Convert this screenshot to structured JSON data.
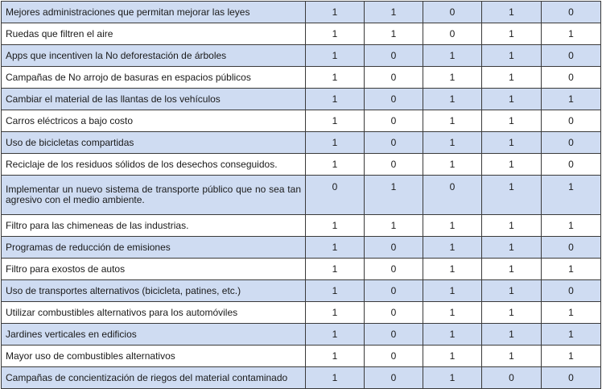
{
  "table": {
    "rows": [
      {
        "label": "Mejores administraciones que permitan mejorar las leyes",
        "values": [
          "1",
          "1",
          "0",
          "1",
          "0"
        ]
      },
      {
        "label": "Ruedas que filtren el aire",
        "values": [
          "1",
          "1",
          "0",
          "1",
          "1"
        ]
      },
      {
        "label": "Apps que incentiven la No deforestación de árboles",
        "values": [
          "1",
          "0",
          "1",
          "1",
          "0"
        ]
      },
      {
        "label": "Campañas de No arrojo de basuras en espacios públicos",
        "values": [
          "1",
          "0",
          "1",
          "1",
          "0"
        ]
      },
      {
        "label": "Cambiar el material de las llantas de los vehículos",
        "values": [
          "1",
          "0",
          "1",
          "1",
          "1"
        ]
      },
      {
        "label": "Carros eléctricos a bajo costo",
        "values": [
          "1",
          "0",
          "1",
          "1",
          "0"
        ]
      },
      {
        "label": "Uso de bicicletas compartidas",
        "values": [
          "1",
          "0",
          "1",
          "1",
          "0"
        ]
      },
      {
        "label": "Reciclaje de los residuos sólidos de los desechos conseguidos.",
        "values": [
          "1",
          "0",
          "1",
          "1",
          "0"
        ]
      },
      {
        "label": "Implementar un nuevo sistema de transporte público que no sea tan agresivo con el medio ambiente.",
        "values": [
          "0",
          "1",
          "0",
          "1",
          "1"
        ]
      },
      {
        "label": "Filtro para las chimeneas de las industrias.",
        "values": [
          "1",
          "1",
          "1",
          "1",
          "1"
        ]
      },
      {
        "label": "Programas de reducción de emisiones",
        "values": [
          "1",
          "0",
          "1",
          "1",
          "0"
        ]
      },
      {
        "label": "Filtro para exostos de autos",
        "values": [
          "1",
          "0",
          "1",
          "1",
          "1"
        ]
      },
      {
        "label": "Uso de transportes alternativos (bicicleta, patines, etc.)",
        "values": [
          "1",
          "0",
          "1",
          "1",
          "0"
        ]
      },
      {
        "label": "Utilizar combustibles alternativos para los automóviles",
        "values": [
          "1",
          "0",
          "1",
          "1",
          "1"
        ]
      },
      {
        "label": "Jardines verticales en edificios",
        "values": [
          "1",
          "0",
          "1",
          "1",
          "1"
        ]
      },
      {
        "label": "Mayor uso de combustibles alternativos",
        "values": [
          "1",
          "0",
          "1",
          "1",
          "1"
        ]
      },
      {
        "label": "Campañas de concientización de riegos del material contaminado",
        "values": [
          "1",
          "0",
          "1",
          "0",
          "0"
        ]
      }
    ]
  }
}
